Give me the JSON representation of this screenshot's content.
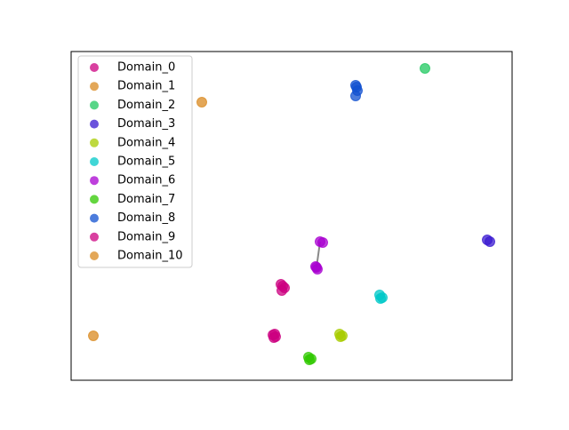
{
  "chart_data": {
    "type": "scatter",
    "xlim": [
      0,
      496
    ],
    "ylim": [
      0,
      370
    ],
    "legend": "upper left",
    "series": [
      {
        "name": "Domain_0",
        "color": "#cc0080",
        "x": [
          236,
          240,
          238,
          237
        ],
        "values": [
          108,
          104,
          106,
          101
        ]
      },
      {
        "name": "Domain_1",
        "color": "#d98a20",
        "x": [
          147
        ],
        "values": [
          313
        ]
      },
      {
        "name": "Domain_2",
        "color": "#20c860",
        "x": [
          398
        ],
        "values": [
          351
        ]
      },
      {
        "name": "Domain_3",
        "color": "#3a1ad0",
        "x": [
          468,
          471
        ],
        "values": [
          158,
          156
        ]
      },
      {
        "name": "Domain_4",
        "color": "#a8cc00",
        "x": [
          302,
          305,
          303
        ],
        "values": [
          52,
          50,
          49
        ]
      },
      {
        "name": "Domain_5",
        "color": "#00c8c8",
        "x": [
          347,
          350,
          348
        ],
        "values": [
          96,
          93,
          92
        ]
      },
      {
        "name": "Domain_6",
        "color": "#a800d0",
        "x": [
          280,
          276,
          283,
          277,
          275
        ],
        "values": [
          156,
          127,
          155,
          125,
          128
        ]
      },
      {
        "name": "Domain_7",
        "color": "#30c800",
        "x": [
          267,
          270,
          268
        ],
        "values": [
          26,
          24,
          23
        ]
      },
      {
        "name": "Domain_8",
        "color": "#1050d0",
        "x": [
          321,
          320,
          322,
          320
        ],
        "values": [
          330,
          320,
          326,
          332
        ]
      },
      {
        "name": "Domain_9",
        "color": "#cc0080",
        "x": [
          227,
          230,
          228,
          229
        ],
        "values": [
          51,
          49,
          48,
          52
        ]
      },
      {
        "name": "Domain_10",
        "color": "#d98a20",
        "x": [
          25
        ],
        "values": [
          50
        ]
      }
    ]
  }
}
